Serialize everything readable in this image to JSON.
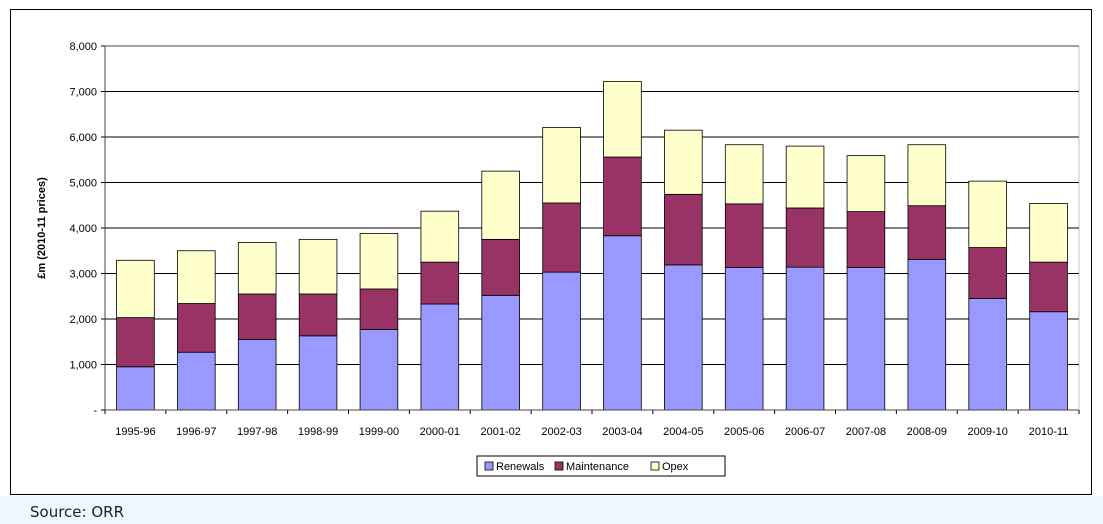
{
  "source_note": "Source: ORR",
  "colors": {
    "Renewals": "#9999ff",
    "Maintenance": "#993366",
    "Opex": "#ffffcc"
  },
  "chart_data": {
    "type": "bar",
    "stacked": true,
    "categories": [
      "1995-96",
      "1996-97",
      "1997-98",
      "1998-99",
      "1999-00",
      "2000-01",
      "2001-02",
      "2002-03",
      "2003-04",
      "2004-05",
      "2005-06",
      "2006-07",
      "2007-08",
      "2008-09",
      "2009-10",
      "2010-11"
    ],
    "series": [
      {
        "name": "Renewals",
        "values": [
          950,
          1270,
          1550,
          1630,
          1770,
          2330,
          2520,
          3030,
          3830,
          3190,
          3130,
          3140,
          3130,
          3310,
          2450,
          2160
        ]
      },
      {
        "name": "Maintenance",
        "values": [
          1080,
          1070,
          1000,
          920,
          890,
          920,
          1230,
          1520,
          1730,
          1550,
          1400,
          1300,
          1230,
          1180,
          1120,
          1090
        ]
      },
      {
        "name": "Opex",
        "values": [
          1260,
          1160,
          1130,
          1200,
          1220,
          1120,
          1500,
          1660,
          1660,
          1410,
          1300,
          1360,
          1230,
          1340,
          1460,
          1290
        ]
      }
    ],
    "title": "",
    "xlabel": "",
    "ylabel": "£m (2010-11 prices)",
    "ylim": [
      0,
      8000
    ],
    "yticks": [
      0,
      1000,
      2000,
      3000,
      4000,
      5000,
      6000,
      7000,
      8000
    ],
    "ytick_labels": [
      "-",
      "1,000",
      "2,000",
      "3,000",
      "4,000",
      "5,000",
      "6,000",
      "7,000",
      "8,000"
    ],
    "grid": true,
    "legend": "bottom-center"
  }
}
